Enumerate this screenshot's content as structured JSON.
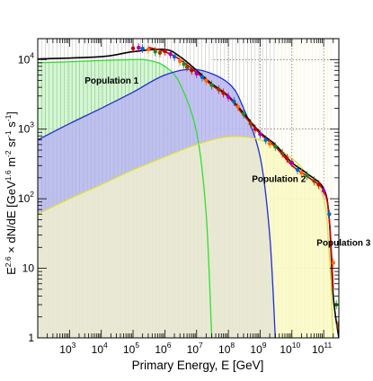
{
  "chart_data": {
    "type": "area",
    "xlabel": "Primary Energy, E [GeV]",
    "ylabel_main": "E",
    "ylabel_exp1": "2.6",
    "ylabel_mid": " × dN/dE [GeV",
    "ylabel_exp2": "1.6",
    "ylabel_mid2": " m",
    "ylabel_exp3": "-2",
    "ylabel_mid3": " sr",
    "ylabel_exp4": "-1",
    "ylabel_mid4": " s",
    "ylabel_exp5": "-1",
    "ylabel_end": "]",
    "x_scale": "log",
    "y_scale": "log",
    "xlim": [
      100,
      300000000000
    ],
    "ylim": [
      1,
      20000
    ],
    "x_ticks": [
      {
        "base": "10",
        "exp": "3",
        "value": 1000
      },
      {
        "base": "10",
        "exp": "4",
        "value": 10000
      },
      {
        "base": "10",
        "exp": "5",
        "value": 100000
      },
      {
        "base": "10",
        "exp": "6",
        "value": 1000000
      },
      {
        "base": "10",
        "exp": "7",
        "value": 10000000
      },
      {
        "base": "10",
        "exp": "8",
        "value": 100000000
      },
      {
        "base": "10",
        "exp": "9",
        "value": 1000000000
      },
      {
        "base": "10",
        "exp": "10",
        "value": 10000000000
      },
      {
        "base": "10",
        "exp": "11",
        "value": 100000000000
      }
    ],
    "y_ticks": [
      {
        "base": "1",
        "exp": "",
        "value": 1
      },
      {
        "base": "10",
        "exp": "",
        "value": 10
      },
      {
        "base": "10",
        "exp": "2",
        "value": 100
      },
      {
        "base": "10",
        "exp": "3",
        "value": 1000
      },
      {
        "base": "10",
        "exp": "4",
        "value": 10000
      }
    ],
    "grid": true,
    "series": [
      {
        "name": "Population 1",
        "color": "#33dd33",
        "fill": "#c8f5c8",
        "label_at": [
          3000.0,
          4500.0
        ],
        "points": [
          [
            100,
            9000
          ],
          [
            1000.0,
            9300
          ],
          [
            10000.0,
            9700
          ],
          [
            100000.0,
            10000
          ],
          [
            300000.0,
            9800
          ],
          [
            1000000.0,
            8000
          ],
          [
            3000000.0,
            4500
          ],
          [
            10000000.0,
            900
          ],
          [
            20000000.0,
            60
          ],
          [
            30000000.0,
            1
          ]
        ]
      },
      {
        "name": "Population 2",
        "color": "#1f2fd0",
        "fill": "#bcbcf2",
        "label_at": [
          550000000.0,
          175.0
        ],
        "points": [
          [
            100,
            700
          ],
          [
            1000.0,
            1200
          ],
          [
            10000.0,
            2000
          ],
          [
            100000.0,
            3400
          ],
          [
            1000000.0,
            6000
          ],
          [
            10000000.0,
            7200
          ],
          [
            100000000.0,
            4600
          ],
          [
            300000000.0,
            2000
          ],
          [
            1000000000.0,
            400
          ],
          [
            2000000000.0,
            30
          ],
          [
            3000000000.0,
            1
          ]
        ]
      },
      {
        "name": "Population 3",
        "color": "#dddd44",
        "fill": "#fafac8",
        "label_at": [
          60000000000.0,
          21
        ],
        "points": [
          [
            100,
            60
          ],
          [
            1000.0,
            100
          ],
          [
            10000.0,
            160
          ],
          [
            100000.0,
            260
          ],
          [
            1000000.0,
            400
          ],
          [
            10000000.0,
            600
          ],
          [
            100000000.0,
            780
          ],
          [
            1000000000.0,
            700
          ],
          [
            10000000000.0,
            380
          ],
          [
            30000000000.0,
            220
          ],
          [
            100000000000.0,
            100
          ],
          [
            150000000000.0,
            15
          ],
          [
            200000000000.0,
            1
          ]
        ]
      },
      {
        "name": "",
        "color": "#000000",
        "fill": "none",
        "points": [
          [
            100,
            10200
          ],
          [
            10000.0,
            11000
          ],
          [
            100000.0,
            13000
          ],
          [
            1000000.0,
            14000
          ],
          [
            3000000.0,
            11000
          ],
          [
            10000000.0,
            7000
          ],
          [
            30000000.0,
            4500
          ],
          [
            100000000.0,
            3000
          ],
          [
            300000000.0,
            1700
          ],
          [
            1000000000.0,
            900
          ],
          [
            3000000000.0,
            600
          ],
          [
            10000000000.0,
            330
          ],
          [
            30000000000.0,
            230
          ],
          [
            100000000000.0,
            140
          ],
          [
            150000000000.0,
            50
          ],
          [
            200000000000.0,
            4
          ],
          [
            300000000000.0,
            1
          ]
        ]
      },
      {
        "name": "",
        "color": "#cc0000",
        "fill": "none",
        "points": [
          [
            300000.0,
            15000
          ],
          [
            1000000.0,
            13000
          ],
          [
            3000000.0,
            10000
          ],
          [
            10000000.0,
            6500
          ],
          [
            30000000.0,
            4300
          ],
          [
            100000000.0,
            2900
          ],
          [
            300000000.0,
            1600
          ],
          [
            1000000000.0,
            860
          ],
          [
            3000000000.0,
            560
          ],
          [
            10000000000.0,
            300
          ],
          [
            30000000000.0,
            210
          ],
          [
            100000000000.0,
            130
          ],
          [
            150000000000.0,
            50
          ],
          [
            200000000000.0,
            5
          ]
        ]
      }
    ],
    "measurements": [
      [
        100000.0,
        14500
      ],
      [
        150000.0,
        14800
      ],
      [
        200000.0,
        14400
      ],
      [
        300000.0,
        14000
      ],
      [
        500000.0,
        13000
      ],
      [
        700000.0,
        12500
      ],
      [
        1000000.0,
        13200
      ],
      [
        1500000.0,
        12000
      ],
      [
        2000000.0,
        11000
      ],
      [
        3000000.0,
        9500
      ],
      [
        4000000.0,
        8600
      ],
      [
        5000000.0,
        7800
      ],
      [
        7000000.0,
        7000
      ],
      [
        10000000.0,
        6300
      ],
      [
        15000000.0,
        5600
      ],
      [
        20000000.0,
        5000
      ],
      [
        30000000.0,
        4300
      ],
      [
        50000000.0,
        3700
      ],
      [
        70000000.0,
        3300
      ],
      [
        100000000.0,
        2900
      ],
      [
        150000000.0,
        2500
      ],
      [
        200000000.0,
        2100
      ],
      [
        300000000.0,
        1650
      ],
      [
        500000000.0,
        1200
      ],
      [
        700000000.0,
        1000
      ],
      [
        1000000000.0,
        850
      ],
      [
        1500000000.0,
        700
      ],
      [
        2000000000.0,
        620
      ],
      [
        3000000000.0,
        560
      ],
      [
        5000000000.0,
        450
      ],
      [
        7000000000.0,
        380
      ],
      [
        10000000000.0,
        330
      ],
      [
        15000000000.0,
        260
      ],
      [
        20000000000.0,
        235
      ],
      [
        30000000000.0,
        215
      ],
      [
        50000000000.0,
        180
      ],
      [
        70000000000.0,
        160
      ],
      [
        100000000000.0,
        130
      ],
      [
        150000000000.0,
        60
      ],
      [
        200000000000.0,
        12
      ],
      [
        250000000000.0,
        3
      ],
      [
        280000000000.0,
        1.5
      ]
    ]
  }
}
